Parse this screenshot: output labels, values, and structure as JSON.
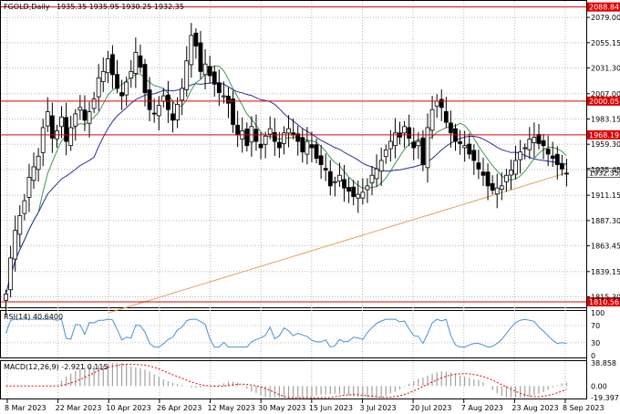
{
  "header": {
    "symbol": "FGOLD,Daily",
    "ohlc": "1935.35 1935.95 1930.25 1932.35"
  },
  "chart_data": [
    {
      "type": "candlestick",
      "title": "FGOLD,Daily",
      "ylim": [
        1808,
        2092
      ],
      "yticks": [
        "2079.00",
        "2055.15",
        "2031.30",
        "2007.00",
        "1983.15",
        "1959.30",
        "1935.45",
        "1911.15",
        "1887.30",
        "1863.45",
        "1839.15",
        "1815.30"
      ],
      "ytick_values": [
        2079.0,
        2055.15,
        2031.3,
        2007.0,
        1983.15,
        1959.3,
        1935.45,
        1911.15,
        1887.3,
        1863.45,
        1839.15,
        1815.3
      ],
      "x_labels": [
        "8 Mar 2023",
        "22 Mar 2023",
        "10 Apr 2023",
        "26 Apr 2023",
        "12 May 2023",
        "30 May 2023",
        "15 Jun 2023",
        "3 Jul 2023",
        "20 Jul 2023",
        "7 Aug 2023",
        "23 Aug 2023",
        "8 Sep 2023"
      ],
      "horizontal_levels": [
        {
          "value": 2088.84,
          "label": "2088.84",
          "color": "#e00000"
        },
        {
          "value": 2000.05,
          "label": "2000.05",
          "color": "#e00000"
        },
        {
          "value": 1968.19,
          "label": "1968.19",
          "color": "#e00000"
        },
        {
          "value": 1810.56,
          "label": "1810.56",
          "color": "#e00000"
        }
      ],
      "current_price": {
        "value": 1932.35,
        "label": "1932.35"
      },
      "close_series": [
        1818,
        1852,
        1878,
        1892,
        1906,
        1928,
        1938,
        1948,
        1975,
        1990,
        1965,
        1972,
        1985,
        1962,
        1975,
        1988,
        1994,
        1982,
        1990,
        2002,
        2022,
        2028,
        2040,
        2025,
        2012,
        2005,
        2018,
        2028,
        2046,
        2032,
        2008,
        1992,
        1988,
        1996,
        2005,
        1992,
        1982,
        1997,
        2012,
        2038,
        2062,
        2052,
        2028,
        2035,
        2024,
        2016,
        2008,
        2005,
        1998,
        1978,
        1968,
        1972,
        1958,
        1976,
        1962,
        1956,
        1967,
        1974,
        1962,
        1956,
        1970,
        1974,
        1968,
        1962,
        1952,
        1962,
        1956,
        1946,
        1940,
        1935,
        1920,
        1924,
        1930,
        1918,
        1915,
        1910,
        1912,
        1914,
        1920,
        1930,
        1936,
        1944,
        1954,
        1962,
        1970,
        1966,
        1976,
        1965,
        1956,
        1962,
        1940,
        1975,
        1992,
        2000,
        1994,
        1980,
        1970,
        1962,
        1960,
        1958,
        1950,
        1944,
        1936,
        1930,
        1920,
        1916,
        1918,
        1920,
        1930,
        1935,
        1944,
        1952,
        1956,
        1964,
        1966,
        1960,
        1958,
        1950,
        1946,
        1940,
        1936,
        1932
      ],
      "indicators": [
        {
          "name": "MA fast",
          "color": "#3c9a4a"
        },
        {
          "name": "MA medium",
          "color": "#2a2fa0"
        },
        {
          "name": "MA slow",
          "color": "#e4a060"
        }
      ]
    },
    {
      "type": "line",
      "title": "RSI(14) 40.6400",
      "ylim": [
        0,
        100
      ],
      "yticks": [
        "100",
        "70",
        "30",
        "0"
      ],
      "ytick_values": [
        100,
        70,
        30,
        0
      ],
      "color": "#4a90d9"
    },
    {
      "type": "bar",
      "title": "MACD(12,26,9) -2.921 0.115",
      "ylim": [
        -19.397,
        38.858
      ],
      "yticks": [
        "38.858",
        "0.00",
        "-19.397"
      ],
      "ytick_values": [
        38.858,
        0,
        -19.397
      ],
      "signal_color": "#e00000"
    }
  ]
}
